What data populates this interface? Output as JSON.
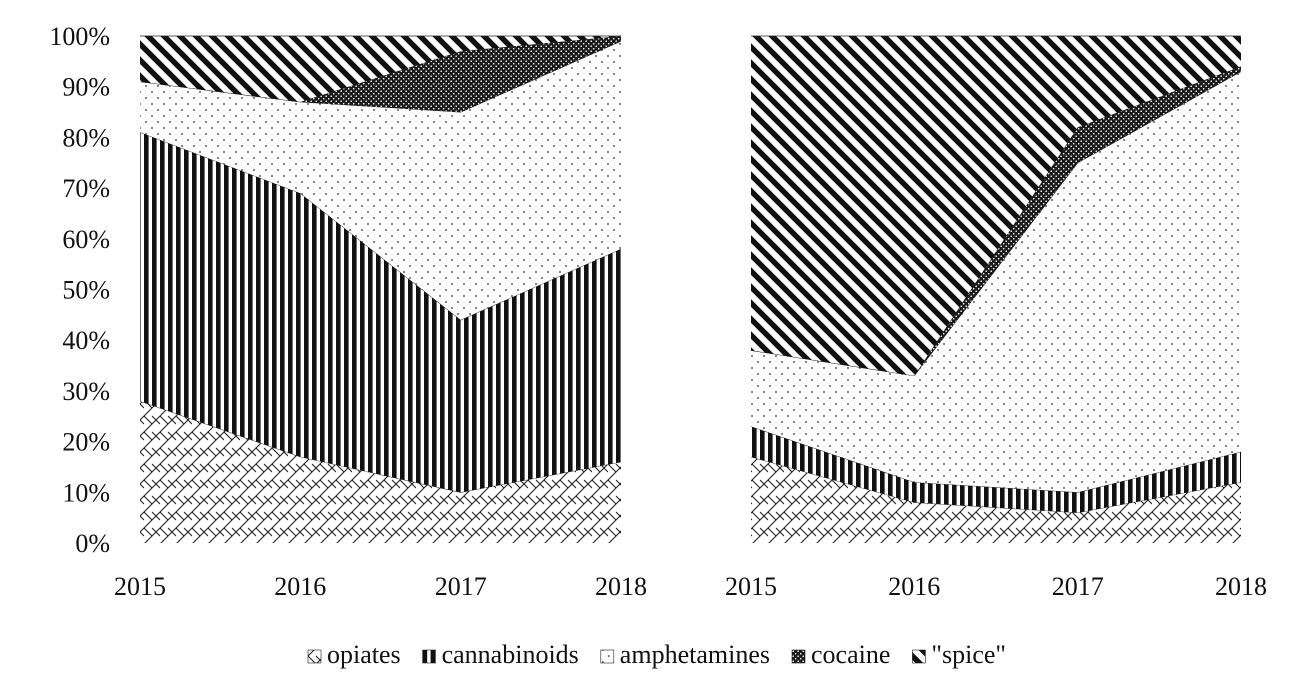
{
  "chart_data": [
    {
      "type": "area",
      "stacked_percent": true,
      "categories": [
        "2015",
        "2016",
        "2017",
        "2018"
      ],
      "ylim": [
        0,
        100
      ],
      "yticks": [
        "0%",
        "10%",
        "20%",
        "30%",
        "40%",
        "50%",
        "60%",
        "70%",
        "80%",
        "90%",
        "100%"
      ],
      "series": [
        {
          "name": "opiates",
          "values": [
            28,
            17,
            10,
            16
          ]
        },
        {
          "name": "cannabinoids",
          "values": [
            53,
            52,
            34,
            42
          ]
        },
        {
          "name": "amphetamines",
          "values": [
            10,
            18,
            41,
            41
          ]
        },
        {
          "name": "cocaine",
          "values": [
            0,
            0,
            12,
            1
          ]
        },
        {
          "name": "\"spice\"",
          "values": [
            9,
            13,
            3,
            0
          ]
        }
      ]
    },
    {
      "type": "area",
      "stacked_percent": true,
      "categories": [
        "2015",
        "2016",
        "2017",
        "2018"
      ],
      "ylim": [
        0,
        100
      ],
      "series": [
        {
          "name": "opiates",
          "values": [
            17,
            8,
            6,
            12
          ]
        },
        {
          "name": "cannabinoids",
          "values": [
            6,
            4,
            4,
            6
          ]
        },
        {
          "name": "amphetamines",
          "values": [
            15,
            21,
            65,
            75
          ]
        },
        {
          "name": "cocaine",
          "values": [
            0,
            0,
            7,
            1
          ]
        },
        {
          "name": "\"spice\"",
          "values": [
            62,
            67,
            18,
            6
          ]
        }
      ]
    }
  ],
  "legend": {
    "position": "bottom",
    "items": [
      {
        "label": "opiates",
        "pattern": "crosshatch"
      },
      {
        "label": "cannabinoids",
        "pattern": "vertical-stripes"
      },
      {
        "label": "amphetamines",
        "pattern": "sparse-dots"
      },
      {
        "label": "cocaine",
        "pattern": "dense-dots"
      },
      {
        "label": "\"spice\"",
        "pattern": "diagonal-stripes"
      }
    ]
  }
}
